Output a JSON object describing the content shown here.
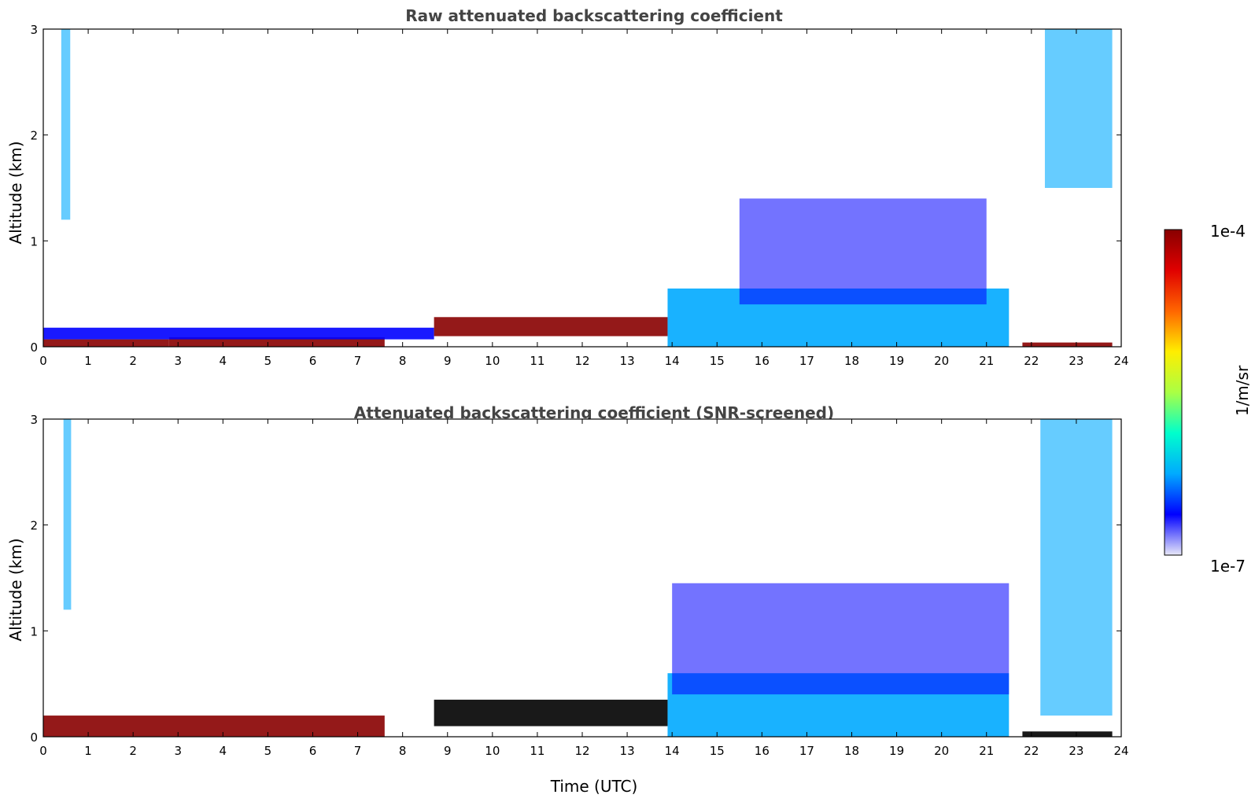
{
  "chart_data": [
    {
      "type": "heatmap",
      "title": "Raw attenuated backscattering coefficient",
      "ylabel": "Altitude (km)",
      "xlabel": "",
      "xlim": [
        0,
        24
      ],
      "ylim": [
        0,
        3
      ],
      "xticks": [
        "0",
        "1",
        "2",
        "3",
        "4",
        "5",
        "6",
        "7",
        "8",
        "9",
        "10",
        "11",
        "12",
        "13",
        "14",
        "15",
        "16",
        "17",
        "18",
        "19",
        "20",
        "21",
        "22",
        "23",
        "24"
      ],
      "yticks": [
        "0",
        "1",
        "2",
        "3"
      ],
      "data_end_time": 23.8,
      "features": [
        {
          "kind": "surface_layer",
          "t": [
            0,
            2.8
          ],
          "bottom_km": 0.0,
          "top_km": 0.07,
          "level": "1e-4"
        },
        {
          "kind": "surface_layer",
          "t": [
            2.8,
            7.6
          ],
          "bottom_km": 0.0,
          "top_km": 0.09,
          "level": "1e-4"
        },
        {
          "kind": "residual_layer",
          "t": [
            0,
            8.7
          ],
          "bottom_km": 0.07,
          "top_km": 0.18,
          "level": "high"
        },
        {
          "kind": "elevated_layer",
          "t": [
            8.7,
            13.9
          ],
          "bottom_km": 0.1,
          "top_km": 0.28,
          "level": "1e-4"
        },
        {
          "kind": "mixed_layer",
          "t": [
            13.9,
            21.5
          ],
          "bottom_km": 0.0,
          "top_km": 0.55,
          "level": "moderate"
        },
        {
          "kind": "aerosol_layer",
          "t": [
            15.5,
            21.0
          ],
          "bottom_km": 0.4,
          "top_km": 1.4,
          "level": "low"
        },
        {
          "kind": "cloud",
          "t": [
            0.4,
            0.6
          ],
          "bottom_km": 1.2,
          "top_km": 3.0,
          "level": "moderate"
        },
        {
          "kind": "cloud",
          "t": [
            22.3,
            23.8
          ],
          "bottom_km": 1.5,
          "top_km": 3.0,
          "level": "moderate"
        },
        {
          "kind": "surface_layer",
          "t": [
            21.8,
            23.8
          ],
          "bottom_km": 0.0,
          "top_km": 0.04,
          "level": "1e-4"
        }
      ]
    },
    {
      "type": "heatmap",
      "title": "Attenuated backscattering coefficient (SNR-screened)",
      "ylabel": "Altitude (km)",
      "xlabel": "Time (UTC)",
      "xlim": [
        0,
        24
      ],
      "ylim": [
        0,
        3
      ],
      "xticks": [
        "0",
        "1",
        "2",
        "3",
        "4",
        "5",
        "6",
        "7",
        "8",
        "9",
        "10",
        "11",
        "12",
        "13",
        "14",
        "15",
        "16",
        "17",
        "18",
        "19",
        "20",
        "21",
        "22",
        "23",
        "24"
      ],
      "yticks": [
        "0",
        "1",
        "2",
        "3"
      ],
      "data_end_time": 23.8,
      "features": [
        {
          "kind": "surface_layer",
          "t": [
            0,
            7.6
          ],
          "bottom_km": 0.0,
          "top_km": 0.2,
          "level": "1e-4"
        },
        {
          "kind": "elevated_layer",
          "t": [
            8.7,
            13.9
          ],
          "bottom_km": 0.1,
          "top_km": 0.35,
          "level": "saturated"
        },
        {
          "kind": "mixed_layer",
          "t": [
            13.9,
            21.5
          ],
          "bottom_km": 0.0,
          "top_km": 0.6,
          "level": "moderate"
        },
        {
          "kind": "aerosol_layer",
          "t": [
            14.0,
            21.5
          ],
          "bottom_km": 0.4,
          "top_km": 1.45,
          "level": "low"
        },
        {
          "kind": "cloud",
          "t": [
            0.45,
            0.62
          ],
          "bottom_km": 1.2,
          "top_km": 3.0,
          "level": "moderate"
        },
        {
          "kind": "cloud",
          "t": [
            22.2,
            23.8
          ],
          "bottom_km": 0.2,
          "top_km": 3.0,
          "level": "moderate"
        },
        {
          "kind": "surface_layer",
          "t": [
            21.8,
            23.8
          ],
          "bottom_km": 0.0,
          "top_km": 0.05,
          "level": "saturated"
        }
      ]
    }
  ],
  "colorbar": {
    "label": "1/m/sr",
    "max_label": "1e-4",
    "min_label": "1e-7",
    "colormap": "jet",
    "colors": [
      "#e8e8f8",
      "#0000ff",
      "#00aaff",
      "#00ffcc",
      "#aaff44",
      "#ffee00",
      "#ff6600",
      "#e00000",
      "#880000"
    ]
  }
}
